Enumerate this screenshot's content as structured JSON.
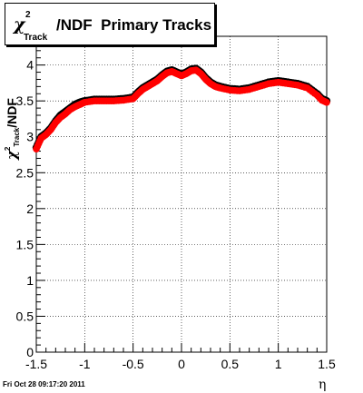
{
  "title": {
    "symbol": "χ",
    "superscript": "2",
    "subscript": "Track",
    "rest": "/NDF  Primary Tracks"
  },
  "footer": "Fri Oct 28 09:17:20 2011",
  "chart_data": {
    "type": "scatter",
    "title": "χ²_Track/NDF  Primary Tracks",
    "xlabel": "η",
    "ylabel": "χ²_Track/NDF",
    "xlim": [
      -1.5,
      1.5
    ],
    "ylim": [
      0,
      4.4
    ],
    "xticks": [
      -1.5,
      -1,
      -0.5,
      0,
      0.5,
      1,
      1.5
    ],
    "xtick_labels": [
      "-1.5",
      "-1",
      "-0.5",
      "0",
      "0.5",
      "1",
      "1.5"
    ],
    "yticks": [
      0,
      0.5,
      1,
      1.5,
      2,
      2.5,
      3,
      3.5,
      4
    ],
    "ytick_labels": [
      "0",
      "0.5",
      "1",
      "1.5",
      "2",
      "2.5",
      "3",
      "3.5",
      "4"
    ],
    "grid": true,
    "colors": {
      "series_a": "#000000",
      "series_b": "#ff0000"
    },
    "series": [
      {
        "x": [
          -1.5,
          -1.45,
          -1.4,
          -1.35,
          -1.3,
          -1.25,
          -1.2,
          -1.15,
          -1.1,
          -1.05,
          -1.0,
          -0.9,
          -0.8,
          -0.7,
          -0.6,
          -0.5,
          -0.45,
          -0.4,
          -0.35,
          -0.3,
          -0.25,
          -0.2,
          -0.15,
          -0.1,
          -0.05,
          0.0,
          0.05,
          0.1,
          0.15,
          0.2,
          0.25,
          0.3,
          0.35,
          0.4,
          0.5,
          0.6,
          0.7,
          0.8,
          0.9,
          1.0,
          1.1,
          1.2,
          1.3,
          1.4,
          1.45,
          1.5
        ],
        "values": [
          2.85,
          3.0,
          3.05,
          3.12,
          3.22,
          3.3,
          3.35,
          3.4,
          3.45,
          3.48,
          3.5,
          3.52,
          3.52,
          3.52,
          3.53,
          3.55,
          3.62,
          3.68,
          3.72,
          3.76,
          3.8,
          3.86,
          3.91,
          3.93,
          3.9,
          3.87,
          3.9,
          3.94,
          3.95,
          3.9,
          3.82,
          3.76,
          3.72,
          3.7,
          3.67,
          3.66,
          3.68,
          3.72,
          3.76,
          3.78,
          3.76,
          3.74,
          3.7,
          3.6,
          3.53,
          3.5
        ]
      },
      {
        "x": [
          -1.5,
          -1.45,
          -1.4,
          -1.35,
          -1.3,
          -1.25,
          -1.2,
          -1.15,
          -1.1,
          -1.05,
          -1.0,
          -0.9,
          -0.8,
          -0.7,
          -0.6,
          -0.5,
          -0.45,
          -0.4,
          -0.35,
          -0.3,
          -0.25,
          -0.2,
          -0.15,
          -0.1,
          -0.05,
          0.0,
          0.05,
          0.1,
          0.15,
          0.2,
          0.25,
          0.3,
          0.35,
          0.4,
          0.5,
          0.6,
          0.7,
          0.8,
          0.9,
          1.0,
          1.1,
          1.2,
          1.3,
          1.4,
          1.45,
          1.5
        ],
        "values": [
          2.83,
          2.98,
          3.03,
          3.1,
          3.2,
          3.27,
          3.32,
          3.38,
          3.42,
          3.45,
          3.48,
          3.5,
          3.5,
          3.5,
          3.51,
          3.53,
          3.6,
          3.66,
          3.7,
          3.74,
          3.78,
          3.84,
          3.89,
          3.91,
          3.88,
          3.85,
          3.88,
          3.92,
          3.93,
          3.88,
          3.8,
          3.74,
          3.7,
          3.68,
          3.65,
          3.64,
          3.66,
          3.7,
          3.74,
          3.76,
          3.74,
          3.72,
          3.68,
          3.58,
          3.51,
          3.48
        ]
      }
    ]
  }
}
